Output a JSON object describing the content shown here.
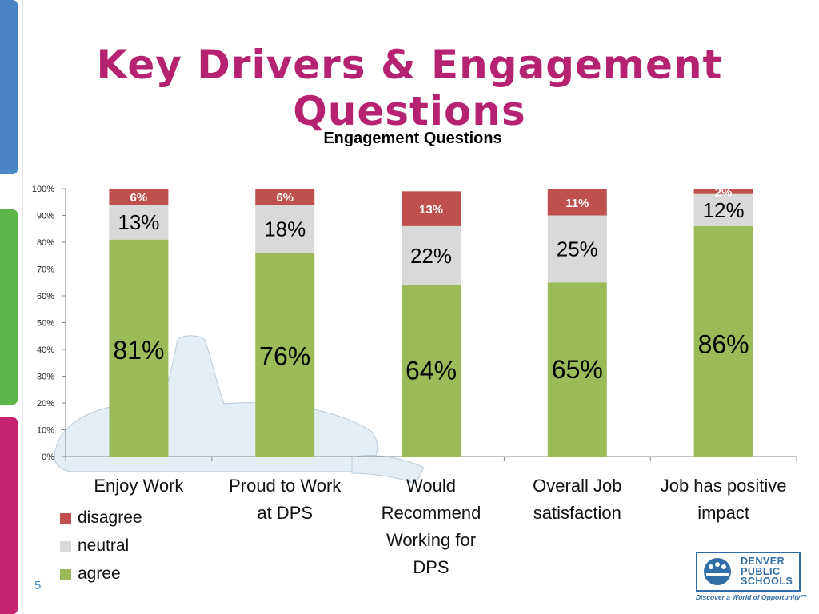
{
  "slide": {
    "title": "Key Drivers & Engagement Questions",
    "page_number": "5"
  },
  "logo": {
    "lines": [
      "DENVER",
      "PUBLIC",
      "SCHOOLS"
    ],
    "tagline": "Discover a World of Opportunity™"
  },
  "colors": {
    "title": "#b5226f",
    "agree": "#9bbb59",
    "neutral": "#d9d9d9",
    "disagree": "#c0504d",
    "side_blue": "#4a86c5",
    "side_green": "#5cb548",
    "side_magenta": "#c7246f"
  },
  "chart_data": {
    "type": "bar",
    "stacked": true,
    "title": "Engagement Questions",
    "categories": [
      "Enjoy Work",
      "Proud to Work at DPS",
      "Would Recommend Working for DPS",
      "Overall Job satisfaction",
      "Job has positive impact"
    ],
    "category_label_lines": [
      [
        "Enjoy Work"
      ],
      [
        "Proud to Work",
        "at DPS"
      ],
      [
        "Would",
        "Recommend",
        "Working for",
        "DPS"
      ],
      [
        "Overall Job",
        "satisfaction"
      ],
      [
        "Job has positive",
        "impact"
      ]
    ],
    "series": [
      {
        "name": "agree",
        "values": [
          81,
          76,
          64,
          65,
          86
        ],
        "labels": [
          "81%",
          "76%",
          "64%",
          "65%",
          "86%"
        ]
      },
      {
        "name": "neutral",
        "values": [
          13,
          18,
          22,
          25,
          12
        ],
        "labels": [
          "13%",
          "18%",
          "22%",
          "25%",
          "12%"
        ]
      },
      {
        "name": "disagree",
        "values": [
          6,
          6,
          13,
          11,
          2
        ],
        "labels": [
          "6%",
          "6%",
          "13%",
          "11%",
          "2%"
        ]
      }
    ],
    "legend": [
      "disagree",
      "neutral",
      "agree"
    ],
    "legend_position": "bottom-left",
    "ylim": [
      0,
      100
    ],
    "yticks": [
      "0%",
      "10%",
      "20%",
      "30%",
      "40%",
      "50%",
      "60%",
      "70%",
      "80%",
      "90%",
      "100%"
    ],
    "grid": false
  }
}
